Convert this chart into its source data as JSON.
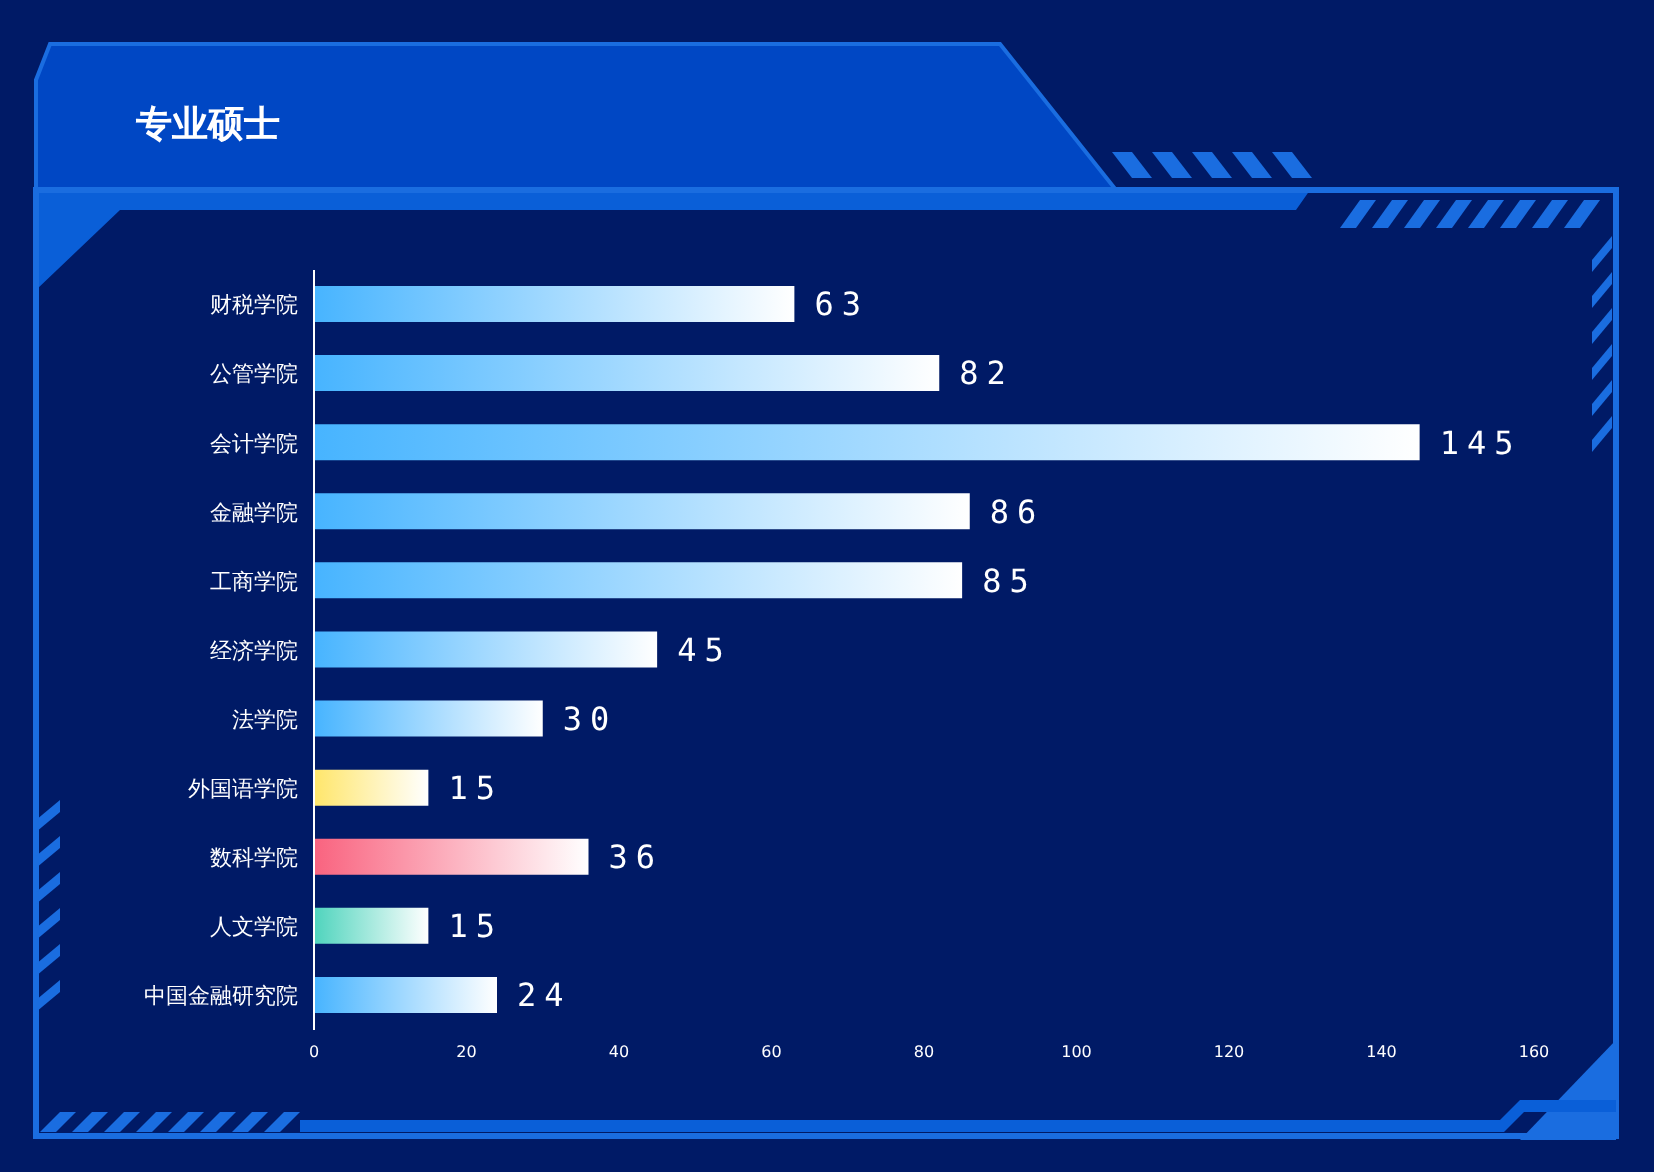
{
  "chart_data": {
    "type": "bar",
    "orientation": "horizontal",
    "title": "专业硕士",
    "categories": [
      "财税学院",
      "公管学院",
      "会计学院",
      "金融学院",
      "工商学院",
      "经济学院",
      "法学院",
      "外国语学院",
      "数科学院",
      "人文学院",
      "中国金融研究院"
    ],
    "values": [
      63,
      82,
      145,
      86,
      85,
      45,
      30,
      15,
      36,
      15,
      24
    ],
    "colors": [
      "#47b4ff",
      "#47b4ff",
      "#47b4ff",
      "#47b4ff",
      "#47b4ff",
      "#47b4ff",
      "#47b4ff",
      "#ffe66b",
      "#f9637f",
      "#4fd4bd",
      "#47b4ff"
    ],
    "xlim": [
      0,
      160
    ],
    "xticks": [
      0,
      20,
      40,
      60,
      80,
      100,
      120,
      140,
      160
    ],
    "data_labels": true,
    "grid": false
  }
}
